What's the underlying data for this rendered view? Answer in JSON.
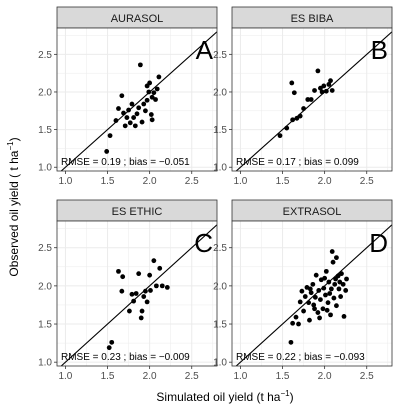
{
  "chart_data": [
    {
      "type": "scatter",
      "panel": "AURASOL",
      "letter": "A",
      "stats_text": "RMSE = 0.19 ; bias = −0.051",
      "xlim": [
        0.9,
        2.8
      ],
      "ylim": [
        0.95,
        2.85
      ],
      "x_ticks": [
        "1.0",
        "1.5",
        "2.0",
        "2.5"
      ],
      "y_ticks": [
        "1.0",
        "1.5",
        "2.0",
        "2.5"
      ],
      "grid": true,
      "reference_line": "1:1",
      "points": [
        [
          1.49,
          1.21
        ],
        [
          1.53,
          1.42
        ],
        [
          1.6,
          1.62
        ],
        [
          1.63,
          1.78
        ],
        [
          1.67,
          1.95
        ],
        [
          1.69,
          1.72
        ],
        [
          1.71,
          1.55
        ],
        [
          1.73,
          1.66
        ],
        [
          1.75,
          1.76
        ],
        [
          1.77,
          1.59
        ],
        [
          1.79,
          1.84
        ],
        [
          1.81,
          1.66
        ],
        [
          1.83,
          1.55
        ],
        [
          1.85,
          1.71
        ],
        [
          1.87,
          1.79
        ],
        [
          1.89,
          2.36
        ],
        [
          1.91,
          1.6
        ],
        [
          1.93,
          1.84
        ],
        [
          1.95,
          1.75
        ],
        [
          1.97,
          1.89
        ],
        [
          1.99,
          2.0
        ],
        [
          2.0,
          2.12
        ],
        [
          2.02,
          1.7
        ],
        [
          2.03,
          1.93
        ],
        [
          2.05,
          1.99
        ],
        [
          2.07,
          1.9
        ],
        [
          2.09,
          2.04
        ],
        [
          2.11,
          2.2
        ],
        [
          1.97,
          2.08
        ],
        [
          2.03,
          1.63
        ]
      ]
    },
    {
      "type": "scatter",
      "panel": "ES BIBA",
      "letter": "B",
      "stats_text": "RMSE = 0.17 ; bias = 0.099",
      "xlim": [
        0.9,
        2.8
      ],
      "ylim": [
        0.95,
        2.85
      ],
      "x_ticks": [
        "1.0",
        "1.5",
        "2.0",
        "2.5"
      ],
      "y_ticks": [
        "1.0",
        "1.5",
        "2.0",
        "2.5"
      ],
      "grid": true,
      "reference_line": "1:1",
      "points": [
        [
          1.47,
          1.42
        ],
        [
          1.55,
          1.52
        ],
        [
          1.61,
          2.12
        ],
        [
          1.62,
          1.63
        ],
        [
          1.67,
          1.65
        ],
        [
          1.71,
          1.68
        ],
        [
          1.75,
          1.78
        ],
        [
          1.8,
          1.9
        ],
        [
          1.84,
          1.9
        ],
        [
          1.88,
          2.02
        ],
        [
          1.92,
          2.28
        ],
        [
          1.95,
          2.05
        ],
        [
          1.97,
          2.0
        ],
        [
          1.99,
          2.08
        ],
        [
          2.02,
          2.01
        ],
        [
          2.05,
          2.1
        ],
        [
          2.07,
          2.15
        ],
        [
          2.09,
          2.02
        ],
        [
          1.64,
          1.99
        ]
      ]
    },
    {
      "type": "scatter",
      "panel": "ES ETHIC",
      "letter": "C",
      "stats_text": "RMSE = 0.23 ; bias = −0.009",
      "xlim": [
        0.9,
        2.8
      ],
      "ylim": [
        0.95,
        2.85
      ],
      "x_ticks": [
        "1.0",
        "1.5",
        "2.0",
        "2.5"
      ],
      "y_ticks": [
        "1.0",
        "1.5",
        "2.0",
        "2.5"
      ],
      "grid": true,
      "reference_line": "1:1",
      "points": [
        [
          1.52,
          1.19
        ],
        [
          1.55,
          1.26
        ],
        [
          1.63,
          2.19
        ],
        [
          1.67,
          1.93
        ],
        [
          1.68,
          2.12
        ],
        [
          1.76,
          1.67
        ],
        [
          1.79,
          1.89
        ],
        [
          1.81,
          1.8
        ],
        [
          1.84,
          1.9
        ],
        [
          1.87,
          2.16
        ],
        [
          1.9,
          1.58
        ],
        [
          1.93,
          1.86
        ],
        [
          1.95,
          1.93
        ],
        [
          1.97,
          1.79
        ],
        [
          2.01,
          1.94
        ],
        [
          2.05,
          2.33
        ],
        [
          2.08,
          2.0
        ],
        [
          2.12,
          2.23
        ],
        [
          2.15,
          2.0
        ],
        [
          2.21,
          1.98
        ],
        [
          2.0,
          2.14
        ],
        [
          1.91,
          1.67
        ]
      ]
    },
    {
      "type": "scatter",
      "panel": "EXTRASOL",
      "letter": "D",
      "stats_text": "RMSE = 0.22 ; bias = −0.093",
      "xlim": [
        0.9,
        2.8
      ],
      "ylim": [
        0.95,
        2.85
      ],
      "x_ticks": [
        "1.0",
        "1.5",
        "2.0",
        "2.5"
      ],
      "y_ticks": [
        "1.0",
        "1.5",
        "2.0",
        "2.5"
      ],
      "grid": true,
      "reference_line": "1:1",
      "points": [
        [
          1.6,
          1.26
        ],
        [
          1.62,
          1.51
        ],
        [
          1.66,
          1.59
        ],
        [
          1.69,
          1.5
        ],
        [
          1.71,
          1.79
        ],
        [
          1.73,
          1.93
        ],
        [
          1.75,
          1.67
        ],
        [
          1.77,
          1.86
        ],
        [
          1.79,
          1.98
        ],
        [
          1.81,
          1.78
        ],
        [
          1.82,
          1.55
        ],
        [
          1.84,
          1.91
        ],
        [
          1.86,
          2.02
        ],
        [
          1.87,
          1.75
        ],
        [
          1.89,
          1.85
        ],
        [
          1.9,
          2.14
        ],
        [
          1.92,
          1.65
        ],
        [
          1.93,
          1.94
        ],
        [
          1.95,
          1.82
        ],
        [
          1.96,
          2.08
        ],
        [
          1.98,
          1.7
        ],
        [
          1.99,
          1.97
        ],
        [
          2.01,
          1.88
        ],
        [
          2.02,
          2.19
        ],
        [
          2.04,
          1.78
        ],
        [
          2.05,
          2.05
        ],
        [
          2.07,
          1.62
        ],
        [
          2.08,
          1.96
        ],
        [
          2.1,
          2.31
        ],
        [
          2.11,
          1.84
        ],
        [
          2.13,
          2.09
        ],
        [
          2.14,
          1.74
        ],
        [
          2.16,
          2.13
        ],
        [
          2.17,
          1.96
        ],
        [
          2.19,
          1.86
        ],
        [
          2.2,
          2.16
        ],
        [
          2.22,
          2.02
        ],
        [
          2.23,
          1.6
        ],
        [
          2.25,
          1.94
        ],
        [
          2.26,
          2.09
        ],
        [
          2.09,
          2.45
        ],
        [
          2.14,
          2.37
        ],
        [
          1.88,
          1.7
        ],
        [
          2.0,
          2.1
        ],
        [
          2.06,
          1.9
        ],
        [
          2.12,
          2.02
        ],
        [
          1.94,
          1.58
        ],
        [
          2.18,
          2.05
        ],
        [
          1.83,
          1.96
        ],
        [
          2.03,
          1.68
        ]
      ]
    }
  ],
  "axes": {
    "xlabel_main": "Simulated oil yield (t ha",
    "xlabel_sup": "−1",
    "xlabel_end": ")",
    "ylabel_main": "Observed oil yield ( t ha",
    "ylabel_sup": "−1",
    "ylabel_end": ")"
  },
  "colors": {
    "panel_bg": "#ffffff",
    "grid": "#ebebeb",
    "border": "#333333",
    "strip_bg": "#d9d9d9",
    "strip_border": "#333333",
    "point": "#000000",
    "line": "#000000"
  }
}
